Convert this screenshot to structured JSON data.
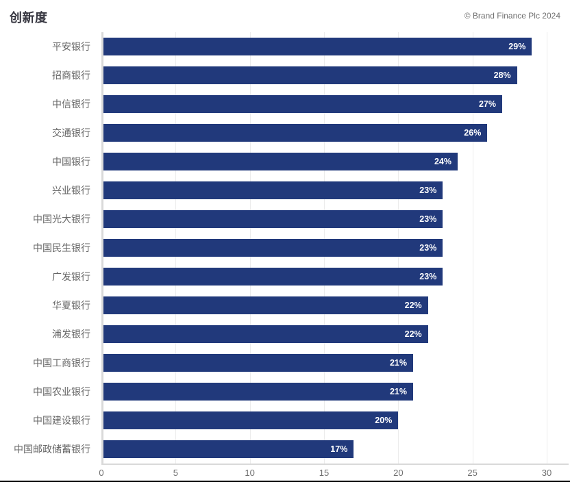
{
  "header": {
    "title": "创新度",
    "copyright": "© Brand Finance Plc 2024"
  },
  "chart_data": {
    "type": "bar",
    "orientation": "horizontal",
    "title": "创新度",
    "categories": [
      "平安银行",
      "招商银行",
      "中信银行",
      "交通银行",
      "中国银行",
      "兴业银行",
      "中国光大银行",
      "中国民生银行",
      "广发银行",
      "华夏银行",
      "浦发银行",
      "中国工商银行",
      "中国农业银行",
      "中国建设银行",
      "中国邮政储蓄银行"
    ],
    "values": [
      29,
      28,
      27,
      26,
      24,
      23,
      23,
      23,
      23,
      22,
      22,
      21,
      21,
      20,
      17
    ],
    "value_labels": [
      "29%",
      "28%",
      "27%",
      "26%",
      "24%",
      "23%",
      "23%",
      "23%",
      "23%",
      "22%",
      "22%",
      "21%",
      "21%",
      "20%",
      "17%"
    ],
    "xlabel": "",
    "ylabel": "",
    "xlim": [
      0,
      30
    ],
    "x_ticks": [
      0,
      5,
      10,
      15,
      20,
      25,
      30
    ],
    "grid": true,
    "legend_position": "none",
    "bar_color": "#21397b",
    "axis_line_color": "#d9d9d9",
    "gridline_color": "#ececec",
    "category_label_color": "#666666",
    "value_label_color": "#ffffff",
    "tick_label_color": "#6f6f6f"
  }
}
